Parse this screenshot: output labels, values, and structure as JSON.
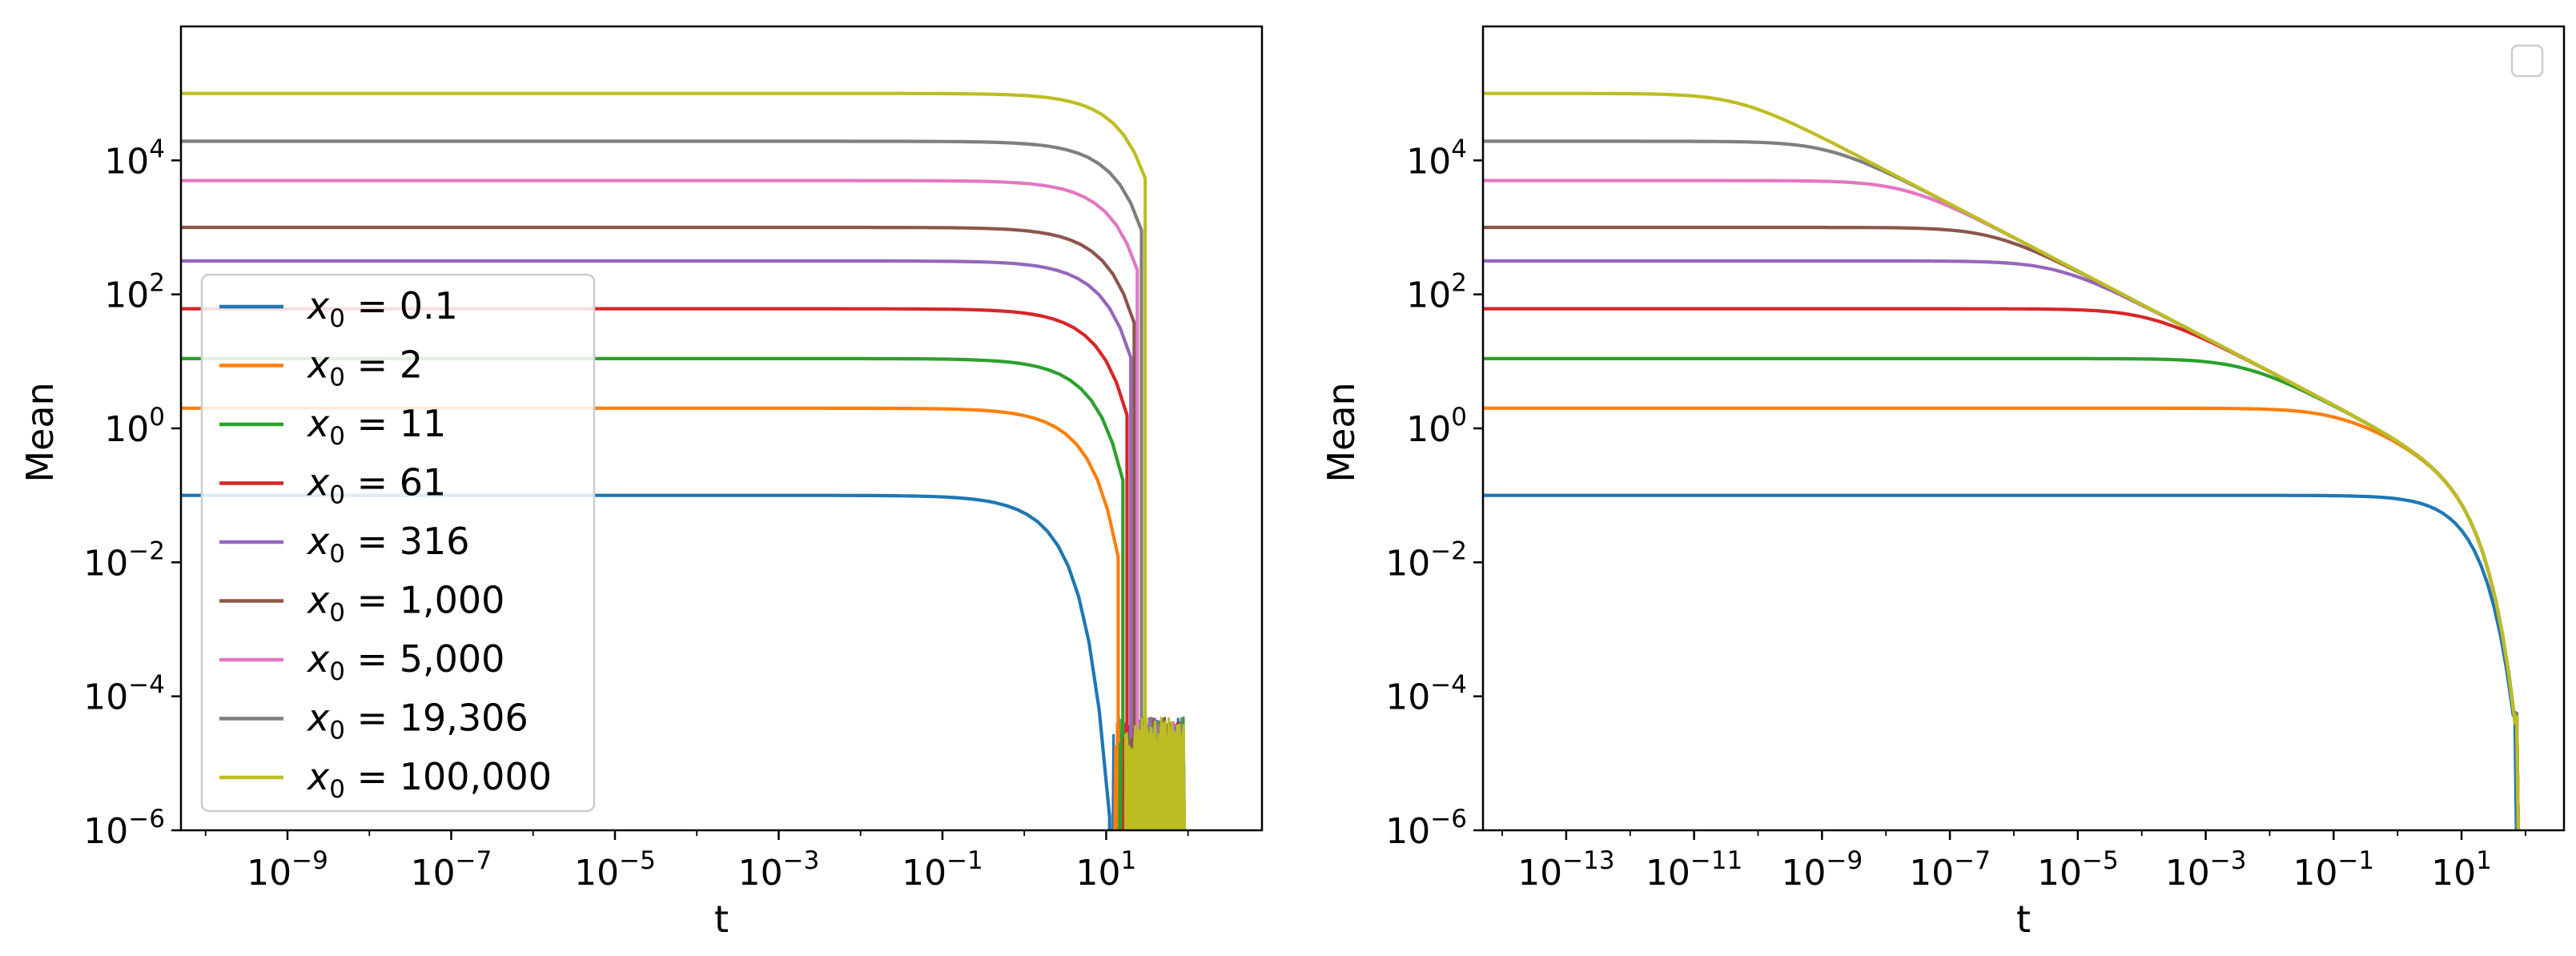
{
  "chart_data": [
    {
      "type": "line",
      "panel": "left",
      "xscale": "log",
      "yscale": "log",
      "xlabel": "t",
      "ylabel": "Mean",
      "xlim": [
        5e-11,
        800
      ],
      "ylim": [
        1e-06,
        1000000
      ],
      "xticks": [
        {
          "base": "10",
          "exp": "−9",
          "value": 1e-09
        },
        {
          "base": "10",
          "exp": "−7",
          "value": 1e-07
        },
        {
          "base": "10",
          "exp": "−5",
          "value": 1e-05
        },
        {
          "base": "10",
          "exp": "−3",
          "value": 0.001
        },
        {
          "base": "10",
          "exp": "−1",
          "value": 0.1
        },
        {
          "base": "10",
          "exp": "1",
          "value": 10
        }
      ],
      "yticks": [
        {
          "base": "10",
          "exp": "−6",
          "value": 1e-06
        },
        {
          "base": "10",
          "exp": "−4",
          "value": 0.0001
        },
        {
          "base": "10",
          "exp": "−2",
          "value": 0.01
        },
        {
          "base": "10",
          "exp": "0",
          "value": 1
        },
        {
          "base": "10",
          "exp": "2",
          "value": 100
        },
        {
          "base": "10",
          "exp": "4",
          "value": 10000
        }
      ],
      "legend_position": "lower-left",
      "series": [
        {
          "name": "x0 = 0.1",
          "label_var": "x",
          "label_sub": "0",
          "label_value": " = 0.1",
          "x0": 0.1,
          "color": "#1f77b4",
          "decay_midpoint_t": 2.0,
          "drop_t": 11
        },
        {
          "name": "x0 = 2",
          "label_var": "x",
          "label_sub": "0",
          "label_value": " = 2",
          "x0": 2,
          "color": "#ff7f0e",
          "decay_midpoint_t": 4.5,
          "drop_t": 14
        },
        {
          "name": "x0 = 11",
          "label_var": "x",
          "label_sub": "0",
          "label_value": " = 11",
          "x0": 11,
          "color": "#2ca02c",
          "decay_midpoint_t": 6.0,
          "drop_t": 16
        },
        {
          "name": "x0 = 61",
          "label_var": "x",
          "label_sub": "0",
          "label_value": " = 61",
          "x0": 61,
          "color": "#d62728",
          "decay_midpoint_t": 7.5,
          "drop_t": 18
        },
        {
          "name": "x0 = 316",
          "label_var": "x",
          "label_sub": "0",
          "label_value": " = 316",
          "x0": 316,
          "color": "#9467bd",
          "decay_midpoint_t": 9.0,
          "drop_t": 20
        },
        {
          "name": "x0 = 1,000",
          "label_var": "x",
          "label_sub": "0",
          "label_value": " = 1,000",
          "x0": 1000,
          "color": "#8c564b",
          "decay_midpoint_t": 10.0,
          "drop_t": 22
        },
        {
          "name": "x0 = 5,000",
          "label_var": "x",
          "label_sub": "0",
          "label_value": " = 5,000",
          "x0": 5000,
          "color": "#e377c2",
          "decay_midpoint_t": 11.5,
          "drop_t": 24
        },
        {
          "name": "x0 = 19,306",
          "label_var": "x",
          "label_sub": "0",
          "label_value": " = 19,306",
          "x0": 19306,
          "color": "#7f7f7f",
          "decay_midpoint_t": 13.0,
          "drop_t": 27
        },
        {
          "name": "x0 = 100,000",
          "label_var": "x",
          "label_sub": "0",
          "label_value": " = 100,000",
          "x0": 100000,
          "color": "#bcbd22",
          "decay_midpoint_t": 15.0,
          "drop_t": 30
        }
      ],
      "noise_band": {
        "t_start": 12,
        "t_end": 90,
        "y_low": 1e-06,
        "y_high": 5e-05
      }
    },
    {
      "type": "line",
      "panel": "right",
      "xscale": "log",
      "yscale": "log",
      "xlabel": "t",
      "ylabel": "Mean",
      "xlim": [
        5e-15,
        400
      ],
      "ylim": [
        1e-06,
        1000000
      ],
      "xticks": [
        {
          "base": "10",
          "exp": "−13",
          "value": 1e-13
        },
        {
          "base": "10",
          "exp": "−11",
          "value": 1e-11
        },
        {
          "base": "10",
          "exp": "−9",
          "value": 1e-09
        },
        {
          "base": "10",
          "exp": "−7",
          "value": 1e-07
        },
        {
          "base": "10",
          "exp": "−5",
          "value": 1e-05
        },
        {
          "base": "10",
          "exp": "−3",
          "value": 0.001
        },
        {
          "base": "10",
          "exp": "−1",
          "value": 0.1
        },
        {
          "base": "10",
          "exp": "1",
          "value": 10
        }
      ],
      "yticks": [
        {
          "base": "10",
          "exp": "−6",
          "value": 1e-06
        },
        {
          "base": "10",
          "exp": "−4",
          "value": 0.0001
        },
        {
          "base": "10",
          "exp": "−2",
          "value": 0.01
        },
        {
          "base": "10",
          "exp": "0",
          "value": 1
        },
        {
          "base": "10",
          "exp": "2",
          "value": 100
        },
        {
          "base": "10",
          "exp": "4",
          "value": 10000
        }
      ],
      "legend_position": "top-right",
      "legend_entries": [],
      "asymptote": {
        "description": "curves merge onto y = 1/sqrt(2t)",
        "coefficient": 0.7071
      },
      "series": [
        {
          "name": "x0 = 0.1",
          "x0": 0.1,
          "color": "#1f77b4",
          "drop_t": 70
        },
        {
          "name": "x0 = 2",
          "x0": 2,
          "color": "#ff7f0e",
          "drop_t": 75
        },
        {
          "name": "x0 = 11",
          "x0": 11,
          "color": "#2ca02c",
          "drop_t": 75
        },
        {
          "name": "x0 = 61",
          "x0": 61,
          "color": "#d62728",
          "drop_t": 75
        },
        {
          "name": "x0 = 316",
          "x0": 316,
          "color": "#9467bd",
          "drop_t": 75
        },
        {
          "name": "x0 = 1,000",
          "x0": 1000,
          "color": "#8c564b",
          "drop_t": 75
        },
        {
          "name": "x0 = 5,000",
          "x0": 5000,
          "color": "#e377c2",
          "drop_t": 75
        },
        {
          "name": "x0 = 19,306",
          "x0": 19306,
          "color": "#7f7f7f",
          "drop_t": 75
        },
        {
          "name": "x0 = 100,000",
          "x0": 100000,
          "color": "#bcbd22",
          "drop_t": 75
        }
      ]
    }
  ]
}
